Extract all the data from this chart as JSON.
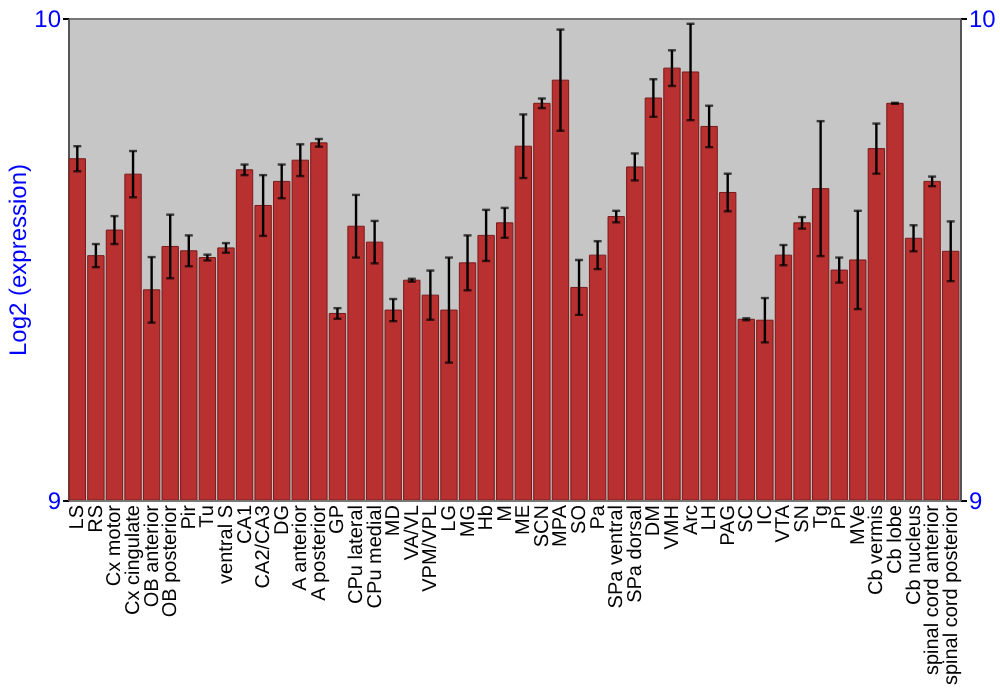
{
  "chart_data": {
    "type": "bar",
    "ylabel": "Log2 (expression)",
    "categories": [
      "LS",
      "RS",
      "Cx motor",
      "Cx cingulate",
      "OB anterior",
      "OB posterior",
      "Pir",
      "Tu",
      "ventral S",
      "CA1",
      "CA2/CA3",
      "DG",
      "A anterior",
      "A posterior",
      "GP",
      "CPu lateral",
      "CPu medial",
      "MD",
      "VA/VL",
      "VPM/VPL",
      "LG",
      "MG",
      "Hb",
      "M",
      "ME",
      "SCN",
      "MPA",
      "SO",
      "Pa",
      "SPa ventral",
      "SPa dorsal",
      "DM",
      "VMH",
      "Arc",
      "LH",
      "PAG",
      "SC",
      "IC",
      "VTA",
      "SN",
      "Tg",
      "Pn",
      "MVe",
      "Cb vermis",
      "Cb lobe",
      "Cb nucleus",
      "spinal cord anterior",
      "spinal cord posterior"
    ],
    "values": [
      9.708,
      9.507,
      9.56,
      9.676,
      9.436,
      9.526,
      9.517,
      9.503,
      9.523,
      9.685,
      9.611,
      9.661,
      9.705,
      9.741,
      9.387,
      9.568,
      9.535,
      9.394,
      9.456,
      9.425,
      9.394,
      9.492,
      9.549,
      9.575,
      9.734,
      9.823,
      9.871,
      9.441,
      9.508,
      9.588,
      9.691,
      9.834,
      9.896,
      9.888,
      9.775,
      9.638,
      9.375,
      9.373,
      9.508,
      9.575,
      9.646,
      9.477,
      9.498,
      9.729,
      9.823,
      9.543,
      9.661,
      9.516
    ],
    "errors": [
      0.026,
      0.024,
      0.029,
      0.048,
      0.068,
      0.066,
      0.032,
      0.006,
      0.01,
      0.011,
      0.063,
      0.035,
      0.033,
      0.008,
      0.011,
      0.065,
      0.044,
      0.023,
      0.003,
      0.051,
      0.109,
      0.057,
      0.053,
      0.031,
      0.066,
      0.01,
      0.105,
      0.057,
      0.029,
      0.012,
      0.028,
      0.039,
      0.037,
      0.1,
      0.043,
      0.039,
      0.002,
      0.046,
      0.021,
      0.012,
      0.14,
      0.026,
      0.102,
      0.052,
      0.001,
      0.027,
      0.01,
      0.062
    ],
    "color": "#b83030",
    "ylim": [
      9,
      10
    ],
    "yticks": [
      9,
      10
    ],
    "y2lim": [
      9,
      10
    ],
    "y2ticks": [
      9,
      10
    ],
    "grid": false
  }
}
